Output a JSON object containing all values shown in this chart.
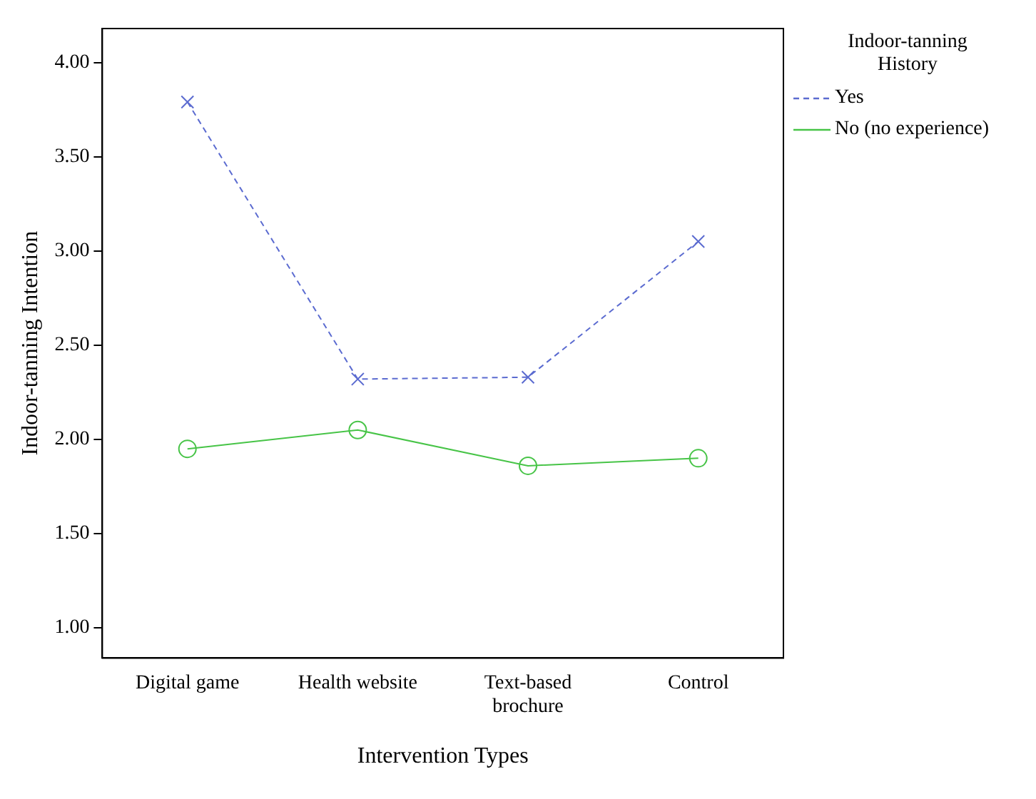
{
  "chart_data": {
    "type": "line",
    "xlabel": "Intervention Types",
    "ylabel": "Indoor-tanning Intention",
    "legend_title": "Indoor-tanning History",
    "categories": [
      "Digital game",
      "Health website",
      "Text-based brochure",
      "Control"
    ],
    "series": [
      {
        "name": "Yes",
        "color": "#5b6bd0",
        "values": [
          3.79,
          2.32,
          2.33,
          3.05
        ],
        "marker": "cross",
        "line_style": "dashed"
      },
      {
        "name": "No (no experience)",
        "color": "#47c447",
        "values": [
          1.95,
          2.05,
          1.86,
          1.9
        ],
        "marker": "circle",
        "line_style": "solid"
      }
    ],
    "ylim": [
      0.84,
      4.18
    ],
    "yticks": [
      {
        "value": 1,
        "label": "1.00"
      },
      {
        "value": 1.5,
        "label": "1.50"
      },
      {
        "value": 2,
        "label": "2.00"
      },
      {
        "value": 2.5,
        "label": "2.50"
      },
      {
        "value": 3,
        "label": "3.00"
      },
      {
        "value": 3.5,
        "label": "3.50"
      },
      {
        "value": 4,
        "label": "4.00"
      }
    ],
    "grid": false,
    "legend": "top right"
  }
}
